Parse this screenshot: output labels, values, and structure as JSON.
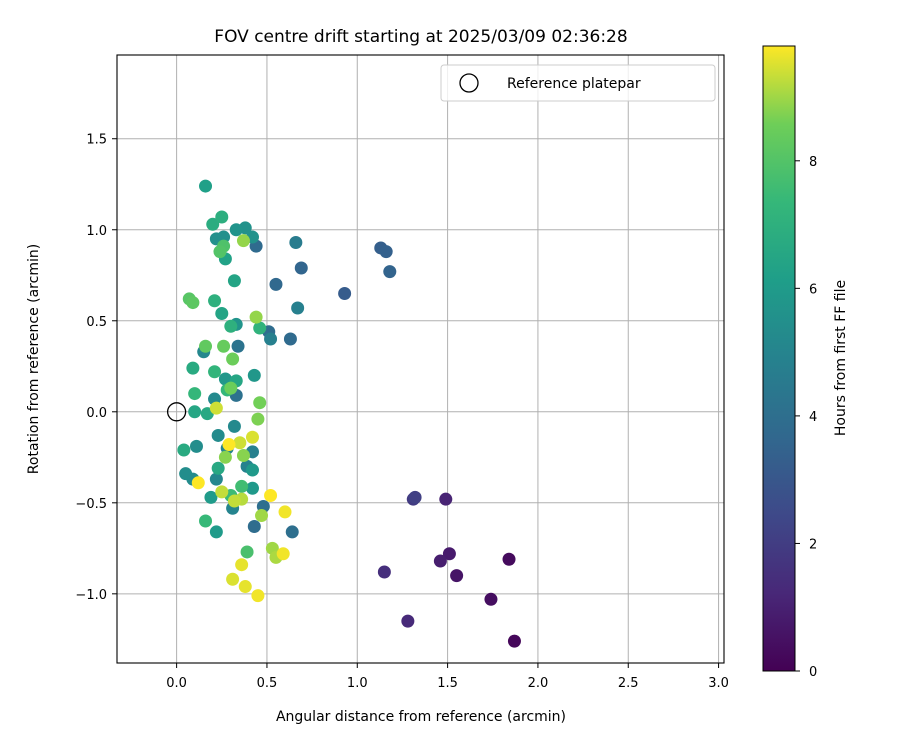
{
  "chart_data": {
    "type": "scatter",
    "title": "FOV centre drift starting at 2025/03/09 02:36:28",
    "xlabel": "Angular distance from reference (arcmin)",
    "ylabel": "Rotation from reference (arcmin)",
    "xlim": [
      -0.33,
      3.03
    ],
    "ylim": [
      -1.38,
      1.96
    ],
    "xticks": [
      0.0,
      0.5,
      1.0,
      1.5,
      2.0,
      2.5,
      3.0
    ],
    "xtick_labels": [
      "0.0",
      "0.5",
      "1.0",
      "1.5",
      "2.0",
      "2.5",
      "3.0"
    ],
    "yticks": [
      -1.0,
      -0.5,
      0.0,
      0.5,
      1.0,
      1.5
    ],
    "ytick_labels": [
      "−1.0",
      "−0.5",
      "0.0",
      "0.5",
      "1.0",
      "1.5"
    ],
    "grid": true,
    "legend": {
      "location": "top-right",
      "entries": [
        "Reference platepar"
      ]
    },
    "reference_point": {
      "x": 0.0,
      "y": 0.0
    },
    "colorbar": {
      "label": "Hours from first FF file",
      "colormap": "viridis",
      "range": [
        0,
        9.8
      ],
      "ticks": [
        0,
        2,
        4,
        6,
        8
      ],
      "tick_labels": [
        "0",
        "2",
        "4",
        "6",
        "8"
      ]
    },
    "points": [
      {
        "x": 1.87,
        "y": -1.26,
        "h": 0.2
      },
      {
        "x": 1.84,
        "y": -0.81,
        "h": 0.3
      },
      {
        "x": 1.74,
        "y": -1.03,
        "h": 0.4
      },
      {
        "x": 1.55,
        "y": -0.9,
        "h": 0.6
      },
      {
        "x": 1.51,
        "y": -0.78,
        "h": 0.8
      },
      {
        "x": 1.46,
        "y": -0.82,
        "h": 0.9
      },
      {
        "x": 1.49,
        "y": -0.48,
        "h": 1.1
      },
      {
        "x": 1.28,
        "y": -1.15,
        "h": 1.3
      },
      {
        "x": 1.15,
        "y": -0.88,
        "h": 1.5
      },
      {
        "x": 1.31,
        "y": -0.48,
        "h": 1.9
      },
      {
        "x": 1.32,
        "y": -0.47,
        "h": 2.1
      },
      {
        "x": 0.93,
        "y": 0.65,
        "h": 3.2
      },
      {
        "x": 1.13,
        "y": 0.9,
        "h": 3.3
      },
      {
        "x": 1.16,
        "y": 0.88,
        "h": 3.4
      },
      {
        "x": 1.18,
        "y": 0.77,
        "h": 3.5
      },
      {
        "x": 0.69,
        "y": 0.79,
        "h": 3.6
      },
      {
        "x": 0.55,
        "y": 0.7,
        "h": 3.7
      },
      {
        "x": 0.63,
        "y": 0.4,
        "h": 3.8
      },
      {
        "x": 0.44,
        "y": 0.91,
        "h": 3.8
      },
      {
        "x": 0.51,
        "y": 0.44,
        "h": 3.9
      },
      {
        "x": 0.43,
        "y": -0.63,
        "h": 3.9
      },
      {
        "x": 0.48,
        "y": -0.52,
        "h": 4.0
      },
      {
        "x": 0.64,
        "y": -0.66,
        "h": 4.0
      },
      {
        "x": 0.33,
        "y": 0.09,
        "h": 4.1
      },
      {
        "x": 0.34,
        "y": 0.36,
        "h": 4.2
      },
      {
        "x": 0.66,
        "y": 0.93,
        "h": 4.6
      },
      {
        "x": 0.67,
        "y": 0.57,
        "h": 4.8
      },
      {
        "x": 0.52,
        "y": 0.4,
        "h": 4.8
      },
      {
        "x": 0.42,
        "y": -0.22,
        "h": 4.8
      },
      {
        "x": 0.39,
        "y": -0.3,
        "h": 4.9
      },
      {
        "x": 0.28,
        "y": -0.2,
        "h": 5.0
      },
      {
        "x": 0.31,
        "y": -0.53,
        "h": 5.0
      },
      {
        "x": 0.22,
        "y": -0.37,
        "h": 5.1
      },
      {
        "x": 0.15,
        "y": 0.33,
        "h": 5.1
      },
      {
        "x": 0.21,
        "y": 0.07,
        "h": 5.2
      },
      {
        "x": 0.32,
        "y": -0.08,
        "h": 5.2
      },
      {
        "x": 0.23,
        "y": -0.13,
        "h": 5.3
      },
      {
        "x": 0.09,
        "y": -0.37,
        "h": 5.3
      },
      {
        "x": 0.05,
        "y": -0.34,
        "h": 5.4
      },
      {
        "x": 0.11,
        "y": -0.19,
        "h": 5.4
      },
      {
        "x": 0.22,
        "y": 0.95,
        "h": 5.5
      },
      {
        "x": 0.26,
        "y": 0.96,
        "h": 5.5
      },
      {
        "x": 0.42,
        "y": 0.96,
        "h": 5.6
      },
      {
        "x": 0.38,
        "y": 1.01,
        "h": 5.6
      },
      {
        "x": 0.33,
        "y": 1.0,
        "h": 5.7
      },
      {
        "x": 0.33,
        "y": 0.48,
        "h": 5.7
      },
      {
        "x": 0.27,
        "y": 0.18,
        "h": 5.8
      },
      {
        "x": 0.43,
        "y": 0.2,
        "h": 5.8
      },
      {
        "x": 0.42,
        "y": -0.32,
        "h": 5.9
      },
      {
        "x": 0.42,
        "y": -0.42,
        "h": 5.9
      },
      {
        "x": 0.19,
        "y": -0.47,
        "h": 6.0
      },
      {
        "x": 0.22,
        "y": -0.66,
        "h": 6.0
      },
      {
        "x": 0.16,
        "y": 1.24,
        "h": 6.2
      },
      {
        "x": 0.27,
        "y": 0.84,
        "h": 6.3
      },
      {
        "x": 0.32,
        "y": 0.72,
        "h": 6.4
      },
      {
        "x": 0.25,
        "y": 0.54,
        "h": 6.4
      },
      {
        "x": 0.33,
        "y": 0.17,
        "h": 6.5
      },
      {
        "x": 0.1,
        "y": 0.0,
        "h": 6.5
      },
      {
        "x": 0.17,
        "y": -0.01,
        "h": 6.6
      },
      {
        "x": 0.23,
        "y": -0.31,
        "h": 6.6
      },
      {
        "x": 0.04,
        "y": -0.21,
        "h": 6.7
      },
      {
        "x": 0.09,
        "y": 0.24,
        "h": 6.7
      },
      {
        "x": 0.2,
        "y": 1.03,
        "h": 6.8
      },
      {
        "x": 0.25,
        "y": 1.07,
        "h": 6.9
      },
      {
        "x": 0.21,
        "y": 0.61,
        "h": 7.0
      },
      {
        "x": 0.3,
        "y": 0.47,
        "h": 7.0
      },
      {
        "x": 0.46,
        "y": 0.46,
        "h": 7.1
      },
      {
        "x": 0.21,
        "y": 0.22,
        "h": 7.2
      },
      {
        "x": 0.28,
        "y": 0.12,
        "h": 7.3
      },
      {
        "x": 0.1,
        "y": 0.1,
        "h": 7.3
      },
      {
        "x": 0.16,
        "y": -0.6,
        "h": 7.4
      },
      {
        "x": 0.3,
        "y": -0.46,
        "h": 7.5
      },
      {
        "x": 0.36,
        "y": -0.41,
        "h": 7.6
      },
      {
        "x": 0.39,
        "y": -0.77,
        "h": 7.8
      },
      {
        "x": 0.26,
        "y": 0.91,
        "h": 7.9
      },
      {
        "x": 0.24,
        "y": 0.88,
        "h": 8.0
      },
      {
        "x": 0.07,
        "y": 0.62,
        "h": 8.1
      },
      {
        "x": 0.09,
        "y": 0.6,
        "h": 8.2
      },
      {
        "x": 0.16,
        "y": 0.36,
        "h": 8.3
      },
      {
        "x": 0.26,
        "y": 0.36,
        "h": 8.4
      },
      {
        "x": 0.31,
        "y": 0.29,
        "h": 8.5
      },
      {
        "x": 0.3,
        "y": 0.13,
        "h": 8.5
      },
      {
        "x": 0.46,
        "y": 0.05,
        "h": 8.6
      },
      {
        "x": 0.45,
        "y": -0.04,
        "h": 8.7
      },
      {
        "x": 0.27,
        "y": -0.25,
        "h": 8.8
      },
      {
        "x": 0.37,
        "y": -0.24,
        "h": 8.8
      },
      {
        "x": 0.37,
        "y": 0.94,
        "h": 8.9
      },
      {
        "x": 0.44,
        "y": 0.52,
        "h": 8.9
      },
      {
        "x": 0.47,
        "y": -0.57,
        "h": 9.0
      },
      {
        "x": 0.53,
        "y": -0.75,
        "h": 9.0
      },
      {
        "x": 0.55,
        "y": -0.8,
        "h": 9.1
      },
      {
        "x": 0.36,
        "y": -0.48,
        "h": 9.2
      },
      {
        "x": 0.32,
        "y": -0.49,
        "h": 9.3
      },
      {
        "x": 0.25,
        "y": -0.44,
        "h": 9.3
      },
      {
        "x": 0.22,
        "y": 0.02,
        "h": 9.4
      },
      {
        "x": 0.35,
        "y": -0.17,
        "h": 9.4
      },
      {
        "x": 0.42,
        "y": -0.14,
        "h": 9.5
      },
      {
        "x": 0.31,
        "y": -0.92,
        "h": 9.5
      },
      {
        "x": 0.36,
        "y": -0.84,
        "h": 9.6
      },
      {
        "x": 0.38,
        "y": -0.96,
        "h": 9.6
      },
      {
        "x": 0.45,
        "y": -1.01,
        "h": 9.7
      },
      {
        "x": 0.59,
        "y": -0.78,
        "h": 9.7
      },
      {
        "x": 0.6,
        "y": -0.55,
        "h": 9.7
      },
      {
        "x": 0.52,
        "y": -0.46,
        "h": 9.8
      },
      {
        "x": 0.12,
        "y": -0.39,
        "h": 9.8
      },
      {
        "x": 0.29,
        "y": -0.18,
        "h": 9.8
      }
    ]
  }
}
